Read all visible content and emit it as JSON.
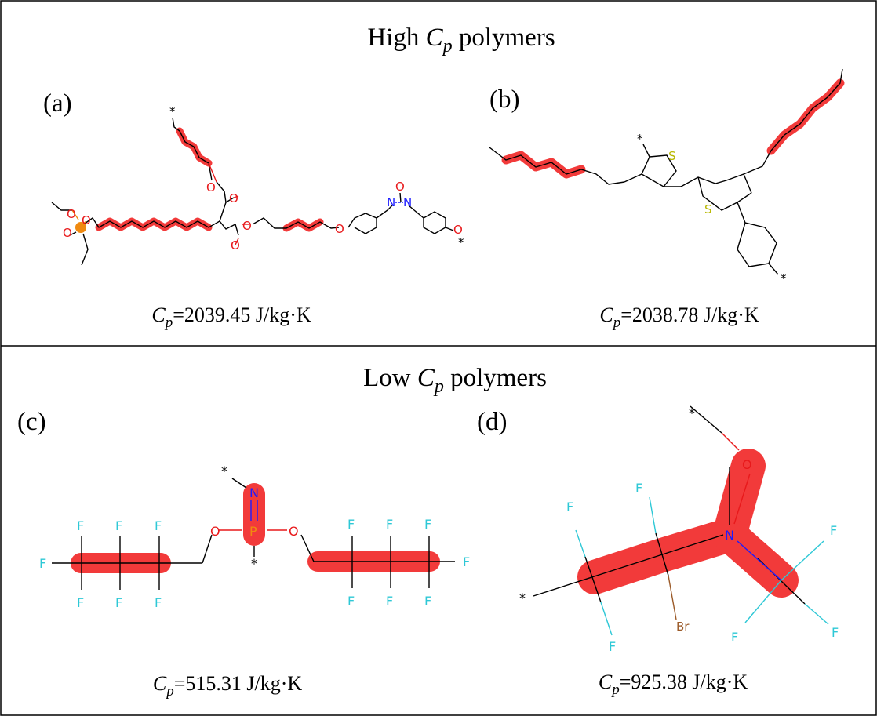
{
  "sections": [
    {
      "title_prefix": "High ",
      "title_symbol": "C",
      "title_sub": "p",
      "title_suffix": " polymers",
      "panels": [
        {
          "label": "(a)",
          "cp_symbol": "C",
          "cp_sub": "p",
          "cp_value": "=2039.45 J/kg·K"
        },
        {
          "label": "(b)",
          "cp_symbol": "C",
          "cp_sub": "p",
          "cp_value": "=2038.78 J/kg·K"
        }
      ]
    },
    {
      "title_prefix": "Low ",
      "title_symbol": "C",
      "title_sub": "p",
      "title_suffix": " polymers",
      "panels": [
        {
          "label": "(c)",
          "cp_symbol": "C",
          "cp_sub": "p",
          "cp_value": "=515.31 J/kg·K"
        },
        {
          "label": "(d)",
          "cp_symbol": "C",
          "cp_sub": "p",
          "cp_value": "=925.38 J/kg·K"
        }
      ]
    }
  ],
  "atoms": {
    "star": "*",
    "O": "O",
    "N": "N",
    "P": "P",
    "S": "S",
    "F": "F",
    "Br": "Br"
  },
  "colors": {
    "highlight": "#f23a3a",
    "oxygen": "#e8191b",
    "nitrogen": "#1c1cff",
    "phosphorus": "#f08a10",
    "sulfur": "#b8b800",
    "fluorine": "#2ec8d6",
    "bromine": "#9b5a28",
    "bond": "#000000"
  }
}
